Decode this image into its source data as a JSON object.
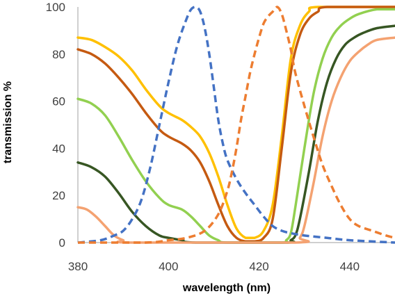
{
  "chart_data": {
    "type": "line",
    "title": "",
    "xlabel": "wavelength (nm)",
    "ylabel": "transmission %",
    "xlim": [
      380,
      450
    ],
    "ylim": [
      0,
      100
    ],
    "xticks": [
      380,
      400,
      420,
      440
    ],
    "yticks": [
      0,
      20,
      40,
      60,
      80,
      100
    ],
    "grid": false,
    "legend": "none",
    "series": [
      {
        "color": "#ffc000",
        "dash": "solid",
        "points": [
          [
            380,
            87
          ],
          [
            383,
            86
          ],
          [
            386,
            83
          ],
          [
            389,
            79
          ],
          [
            392,
            73
          ],
          [
            395,
            65
          ],
          [
            398,
            58
          ],
          [
            400,
            55
          ],
          [
            403,
            52
          ],
          [
            405,
            49
          ],
          [
            407,
            45
          ],
          [
            409,
            38
          ],
          [
            411,
            28
          ],
          [
            413,
            16
          ],
          [
            415,
            6
          ],
          [
            417,
            2
          ],
          [
            419,
            2
          ],
          [
            421,
            5
          ],
          [
            423,
            16
          ],
          [
            425,
            45
          ],
          [
            427,
            78
          ],
          [
            429,
            92
          ],
          [
            431,
            98
          ],
          [
            433,
            100
          ],
          [
            450,
            100
          ]
        ]
      },
      {
        "color": "#c55a11",
        "dash": "solid",
        "points": [
          [
            380,
            82
          ],
          [
            383,
            80
          ],
          [
            386,
            76
          ],
          [
            389,
            70
          ],
          [
            392,
            63
          ],
          [
            395,
            55
          ],
          [
            398,
            48
          ],
          [
            400,
            45
          ],
          [
            403,
            42
          ],
          [
            405,
            39
          ],
          [
            407,
            34
          ],
          [
            409,
            26
          ],
          [
            411,
            16
          ],
          [
            413,
            7
          ],
          [
            415,
            2
          ],
          [
            417,
            0.5
          ],
          [
            419,
            0.5
          ],
          [
            421,
            2
          ],
          [
            423,
            10
          ],
          [
            425,
            40
          ],
          [
            427,
            72
          ],
          [
            429,
            88
          ],
          [
            431,
            95
          ],
          [
            433,
            98
          ],
          [
            435,
            100
          ],
          [
            450,
            100
          ]
        ]
      },
      {
        "color": "#92d050",
        "dash": "solid",
        "points": [
          [
            380,
            61
          ],
          [
            383,
            59
          ],
          [
            386,
            54
          ],
          [
            389,
            45
          ],
          [
            392,
            35
          ],
          [
            395,
            26
          ],
          [
            398,
            19
          ],
          [
            400,
            16
          ],
          [
            403,
            14
          ],
          [
            405,
            11
          ],
          [
            407,
            7
          ],
          [
            409,
            3
          ],
          [
            411,
            1
          ],
          [
            413,
            0
          ],
          [
            425,
            0
          ],
          [
            426,
            1
          ],
          [
            427,
            4
          ],
          [
            428,
            15
          ],
          [
            430,
            40
          ],
          [
            432,
            63
          ],
          [
            434,
            78
          ],
          [
            436,
            87
          ],
          [
            438,
            92
          ],
          [
            440,
            95
          ],
          [
            442,
            97
          ],
          [
            446,
            99
          ],
          [
            450,
            99
          ]
        ]
      },
      {
        "color": "#375623",
        "dash": "solid",
        "points": [
          [
            380,
            34
          ],
          [
            383,
            32
          ],
          [
            386,
            28
          ],
          [
            389,
            21
          ],
          [
            392,
            13
          ],
          [
            395,
            7
          ],
          [
            398,
            3
          ],
          [
            400,
            2
          ],
          [
            403,
            1
          ],
          [
            406,
            0
          ],
          [
            426,
            0
          ],
          [
            427,
            1
          ],
          [
            428,
            3
          ],
          [
            429,
            10
          ],
          [
            431,
            30
          ],
          [
            433,
            52
          ],
          [
            435,
            68
          ],
          [
            437,
            78
          ],
          [
            439,
            84
          ],
          [
            441,
            87
          ],
          [
            443,
            89
          ],
          [
            446,
            91
          ],
          [
            450,
            92
          ]
        ]
      },
      {
        "color": "#f4a271",
        "dash": "solid",
        "points": [
          [
            380,
            15
          ],
          [
            382,
            14
          ],
          [
            384,
            11
          ],
          [
            386,
            7
          ],
          [
            388,
            3
          ],
          [
            390,
            1
          ],
          [
            392,
            0
          ],
          [
            428,
            0
          ],
          [
            429,
            2
          ],
          [
            430,
            7
          ],
          [
            432,
            25
          ],
          [
            434,
            45
          ],
          [
            436,
            60
          ],
          [
            438,
            70
          ],
          [
            440,
            77
          ],
          [
            442,
            81
          ],
          [
            444,
            84
          ],
          [
            446,
            86
          ],
          [
            450,
            87
          ]
        ]
      },
      {
        "color": "#4472c4",
        "dash": "dashed",
        "points": [
          [
            380,
            0
          ],
          [
            385,
            1
          ],
          [
            388,
            3
          ],
          [
            390,
            5
          ],
          [
            392,
            10
          ],
          [
            394,
            18
          ],
          [
            396,
            32
          ],
          [
            398,
            50
          ],
          [
            400,
            68
          ],
          [
            402,
            84
          ],
          [
            404,
            95
          ],
          [
            405,
            99
          ],
          [
            406,
            100
          ],
          [
            407,
            98
          ],
          [
            408,
            91
          ],
          [
            409,
            80
          ],
          [
            410,
            66
          ],
          [
            411,
            52
          ],
          [
            412,
            42
          ],
          [
            413,
            35
          ],
          [
            415,
            27
          ],
          [
            417,
            21
          ],
          [
            419,
            16
          ],
          [
            421,
            11
          ],
          [
            423,
            7
          ],
          [
            425,
            5
          ],
          [
            427,
            4
          ],
          [
            430,
            3
          ],
          [
            435,
            2
          ],
          [
            440,
            1
          ],
          [
            450,
            0
          ]
        ]
      },
      {
        "color": "#ed7d31",
        "dash": "dashed",
        "points": [
          [
            380,
            0
          ],
          [
            395,
            0
          ],
          [
            400,
            1
          ],
          [
            404,
            2
          ],
          [
            408,
            5
          ],
          [
            411,
            12
          ],
          [
            413,
            22
          ],
          [
            414,
            30
          ],
          [
            415,
            40
          ],
          [
            416,
            52
          ],
          [
            417,
            62
          ],
          [
            418,
            72
          ],
          [
            419,
            80
          ],
          [
            420,
            87
          ],
          [
            421,
            93
          ],
          [
            422,
            96
          ],
          [
            423,
            98
          ],
          [
            424,
            100
          ],
          [
            425,
            97
          ],
          [
            426,
            90
          ],
          [
            427,
            82
          ],
          [
            428,
            72
          ],
          [
            430,
            58
          ],
          [
            432,
            45
          ],
          [
            434,
            33
          ],
          [
            436,
            24
          ],
          [
            438,
            16
          ],
          [
            440,
            10
          ],
          [
            442,
            7
          ],
          [
            445,
            5
          ],
          [
            448,
            3
          ],
          [
            450,
            2
          ]
        ]
      }
    ]
  }
}
